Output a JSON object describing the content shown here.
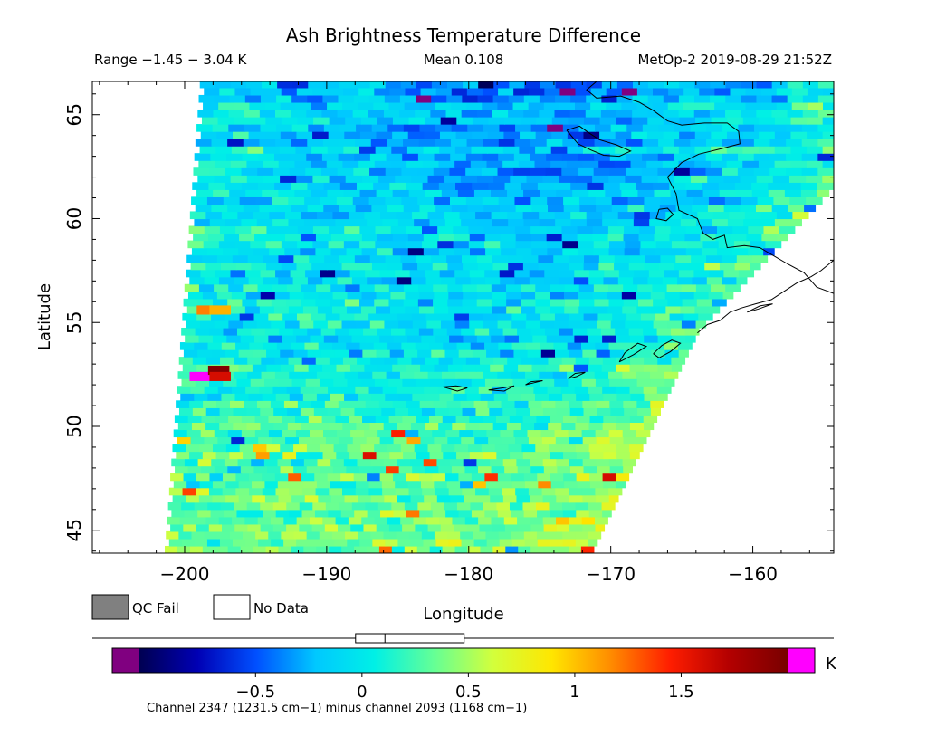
{
  "chart_data": {
    "type": "heatmap",
    "title": "Ash Brightness Temperature Difference",
    "subtitle_left": "Range −1.45 − 3.04 K",
    "subtitle_center": "Mean 0.108",
    "subtitle_right": "MetOp-2 2019-08-29 21:52Z",
    "xlabel": "Longitude",
    "ylabel": "Latitude",
    "xlim": [
      -206.5,
      -154.3
    ],
    "ylim": [
      43.9,
      66.6
    ],
    "x_ticks": [
      -200,
      -190,
      -180,
      -170,
      -160
    ],
    "x_tick_labels": [
      "−200",
      "−190",
      "−180",
      "−170",
      "−160"
    ],
    "y_ticks": [
      45,
      50,
      55,
      60,
      65
    ],
    "y_tick_labels": [
      "45",
      "50",
      "55",
      "60",
      "65"
    ],
    "grid": false,
    "legend_items": [
      {
        "label": "QC Fail",
        "color": "#808080"
      },
      {
        "label": "No Data",
        "color": "#ffffff"
      }
    ],
    "colorbar": {
      "unit": "K",
      "min": -1.05,
      "max": 2.0,
      "ticks": [
        -0.5,
        0,
        0.5,
        1,
        1.5
      ],
      "tick_labels": [
        "−0.5",
        "0",
        "0.5",
        "1",
        "1.5"
      ],
      "under_color": "#800080",
      "over_color": "#ff00ff",
      "colors": [
        "#000050",
        "#0000b4",
        "#0050ff",
        "#00c8ff",
        "#00f0e6",
        "#64ff96",
        "#d2ff3c",
        "#ffe600",
        "#ff8c00",
        "#ff1e00",
        "#b40000",
        "#780000"
      ],
      "range_marker": [
        -0.03,
        0.48
      ],
      "mean_marker": 0.108
    },
    "caption": "Channel 2347 (1231.5 cm−1) minus channel 2093 (1168 cm−1)",
    "swath_west_edge": [
      [
        -198.9,
        66.6
      ],
      [
        -201.4,
        43.9
      ]
    ],
    "swath_east_edge": [
      [
        -154.3,
        61.3
      ],
      [
        -163.8,
        54.4
      ],
      [
        -171.2,
        43.9
      ]
    ],
    "field_trend": {
      "base_value": 0.1,
      "north_center_value": -0.45,
      "south_value": 0.4,
      "east_edge_value": 0.45
    },
    "hotspots": [
      {
        "lon": -198.4,
        "lat": 55.6,
        "value": 1.2
      },
      {
        "lon": -197.5,
        "lat": 55.6,
        "value": 1.05
      },
      {
        "lon": -198.9,
        "lat": 52.4,
        "value": 3.04
      },
      {
        "lon": -197.6,
        "lat": 52.7,
        "value": 1.95
      },
      {
        "lon": -197.5,
        "lat": 52.4,
        "value": 1.6
      }
    ],
    "coastlines": [
      [
        [
          -171.0,
          66.6
        ],
        [
          -171.7,
          66.2
        ],
        [
          -171.0,
          65.8
        ],
        [
          -169.3,
          65.9
        ],
        [
          -168.0,
          65.6
        ],
        [
          -167.0,
          65.2
        ],
        [
          -166.0,
          64.7
        ],
        [
          -165.0,
          64.5
        ],
        [
          -163.4,
          64.6
        ],
        [
          -161.8,
          64.6
        ],
        [
          -161.0,
          64.2
        ],
        [
          -160.9,
          63.6
        ],
        [
          -162.0,
          63.4
        ],
        [
          -163.8,
          63.1
        ],
        [
          -165.0,
          62.7
        ],
        [
          -166.0,
          62.0
        ],
        [
          -165.4,
          61.2
        ],
        [
          -165.2,
          60.4
        ],
        [
          -163.9,
          60.0
        ],
        [
          -163.5,
          59.3
        ],
        [
          -162.8,
          59.0
        ],
        [
          -162.0,
          59.2
        ],
        [
          -161.8,
          58.6
        ],
        [
          -160.6,
          58.7
        ],
        [
          -159.5,
          58.6
        ],
        [
          -158.5,
          58.2
        ],
        [
          -157.5,
          57.8
        ],
        [
          -156.4,
          57.4
        ],
        [
          -155.5,
          56.7
        ],
        [
          -154.3,
          56.4
        ]
      ],
      [
        [
          -173.1,
          64.25
        ],
        [
          -172.2,
          64.45
        ],
        [
          -171.6,
          64.15
        ],
        [
          -170.8,
          63.8
        ],
        [
          -169.6,
          63.55
        ],
        [
          -168.6,
          63.25
        ],
        [
          -169.4,
          63.0
        ],
        [
          -170.5,
          63.05
        ],
        [
          -171.4,
          63.3
        ],
        [
          -172.3,
          63.6
        ],
        [
          -173.1,
          64.25
        ]
      ],
      [
        [
          -166.6,
          60.45
        ],
        [
          -166.0,
          60.5
        ],
        [
          -165.6,
          60.2
        ],
        [
          -166.1,
          59.9
        ],
        [
          -166.8,
          60.0
        ],
        [
          -166.6,
          60.45
        ]
      ],
      [
        [
          -163.9,
          54.5
        ],
        [
          -163.2,
          54.9
        ],
        [
          -162.3,
          55.1
        ],
        [
          -161.6,
          55.5
        ],
        [
          -160.8,
          55.7
        ],
        [
          -159.8,
          55.9
        ],
        [
          -158.7,
          56.1
        ],
        [
          -157.8,
          56.5
        ],
        [
          -156.9,
          56.9
        ],
        [
          -155.9,
          57.2
        ],
        [
          -155.2,
          57.5
        ],
        [
          -154.3,
          58.0
        ]
      ],
      [
        [
          -167.0,
          53.5
        ],
        [
          -166.4,
          53.9
        ],
        [
          -165.7,
          54.15
        ],
        [
          -165.1,
          54.0
        ],
        [
          -165.8,
          53.6
        ],
        [
          -166.6,
          53.3
        ],
        [
          -167.0,
          53.5
        ]
      ],
      [
        [
          -169.4,
          53.1
        ],
        [
          -168.4,
          53.45
        ],
        [
          -167.5,
          53.85
        ],
        [
          -168.1,
          54.0
        ],
        [
          -169.0,
          53.55
        ],
        [
          -169.4,
          53.1
        ]
      ],
      [
        [
          -173.0,
          52.3
        ],
        [
          -172.4,
          52.4
        ],
        [
          -171.8,
          52.6
        ],
        [
          -172.5,
          52.55
        ],
        [
          -173.0,
          52.3
        ]
      ],
      [
        [
          -176.0,
          52.0
        ],
        [
          -175.4,
          52.1
        ],
        [
          -174.8,
          52.2
        ],
        [
          -175.6,
          52.15
        ],
        [
          -176.0,
          52.0
        ]
      ],
      [
        [
          -178.6,
          51.75
        ],
        [
          -177.6,
          51.85
        ],
        [
          -176.8,
          51.95
        ],
        [
          -177.5,
          51.7
        ],
        [
          -178.6,
          51.75
        ]
      ],
      [
        [
          -181.8,
          51.9
        ],
        [
          -180.9,
          51.95
        ],
        [
          -180.1,
          51.85
        ],
        [
          -180.8,
          51.7
        ],
        [
          -181.8,
          51.9
        ]
      ],
      [
        [
          -160.4,
          55.5
        ],
        [
          -159.5,
          55.8
        ],
        [
          -158.6,
          55.9
        ],
        [
          -159.6,
          55.65
        ],
        [
          -160.4,
          55.5
        ]
      ]
    ]
  }
}
